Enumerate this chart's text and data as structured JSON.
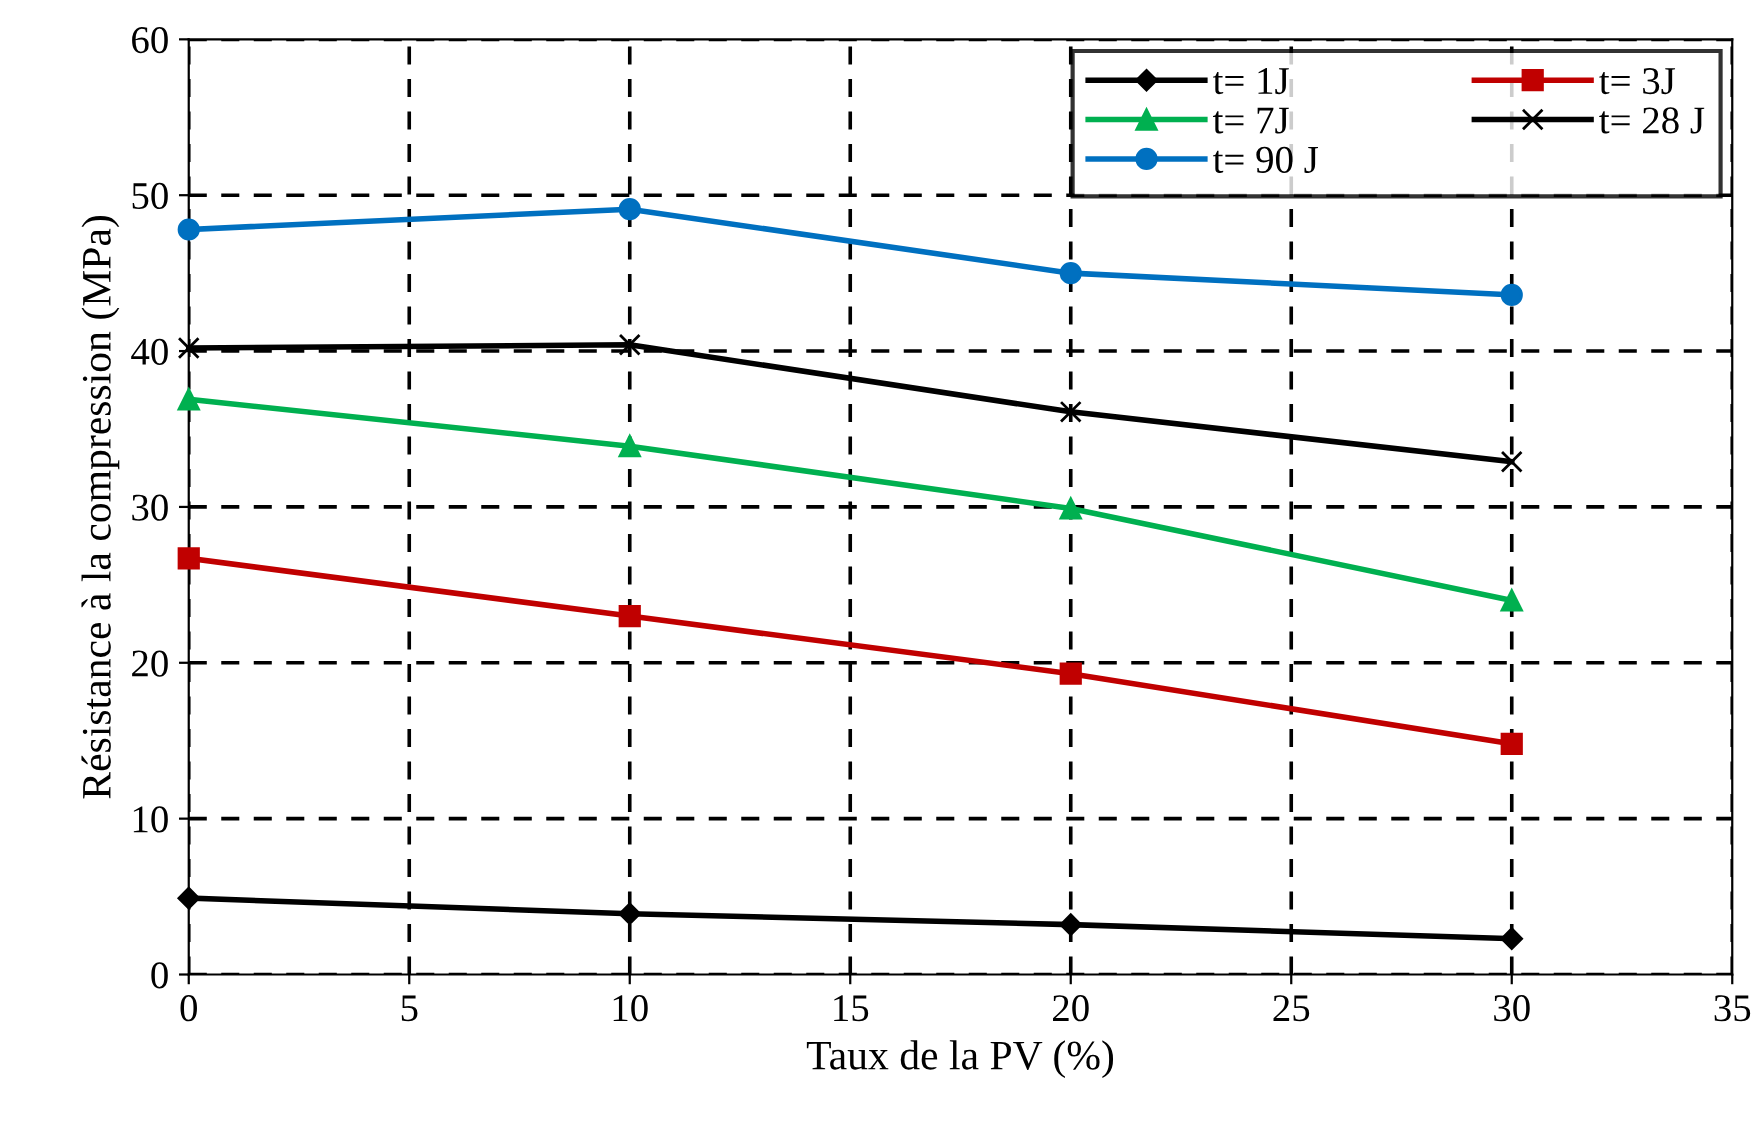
{
  "chart_data": {
    "type": "line",
    "xlabel": "Taux de la PV (%)",
    "ylabel": "Résistance à la compression (MPa)",
    "x": [
      0,
      10,
      20,
      30
    ],
    "series": [
      {
        "name": "t= 1J",
        "color": "#000000",
        "marker": "diamond",
        "values": [
          4.9,
          3.9,
          3.2,
          2.3
        ]
      },
      {
        "name": "t= 3J",
        "color": "#c00000",
        "marker": "square",
        "values": [
          26.7,
          23.0,
          19.3,
          14.8
        ]
      },
      {
        "name": "t= 7J",
        "color": "#00b050",
        "marker": "triangle",
        "values": [
          36.9,
          33.9,
          29.9,
          24.0
        ]
      },
      {
        "name": "t= 28 J",
        "color": "#000000",
        "marker": "cross",
        "values": [
          40.2,
          40.4,
          36.1,
          32.9
        ]
      },
      {
        "name": "t= 90 J",
        "color": "#0070c0",
        "marker": "circle",
        "values": [
          47.8,
          49.1,
          45.0,
          43.6
        ]
      }
    ],
    "xlim": [
      0,
      35
    ],
    "xticks": [
      0,
      5,
      10,
      15,
      20,
      25,
      30,
      35
    ],
    "ylim": [
      0,
      60
    ],
    "yticks": [
      0,
      10,
      20,
      30,
      40,
      50,
      60
    ],
    "grid": true,
    "legend": "top right",
    "line_style": "solid"
  }
}
